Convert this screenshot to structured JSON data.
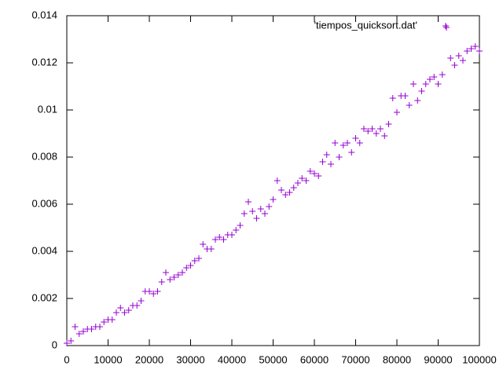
{
  "chart_data": {
    "type": "scatter",
    "xlim": [
      0,
      100000
    ],
    "xticks": [
      0,
      10000,
      20000,
      30000,
      40000,
      50000,
      60000,
      70000,
      80000,
      90000,
      100000
    ],
    "ylim": [
      0,
      0.014
    ],
    "yticks": [
      0,
      0.002,
      0.004,
      0.006,
      0.008,
      0.01,
      0.012,
      0.014
    ],
    "legend": "top-right",
    "series": [
      {
        "name": "'tiempos_quicksort.dat'",
        "color": "#9400d3",
        "x": [
          0,
          1000,
          2000,
          3000,
          4000,
          5000,
          6000,
          7000,
          8000,
          9000,
          10000,
          11000,
          12000,
          13000,
          14000,
          15000,
          16000,
          17000,
          18000,
          19000,
          20000,
          21000,
          22000,
          23000,
          24000,
          25000,
          26000,
          27000,
          28000,
          29000,
          30000,
          31000,
          32000,
          33000,
          34000,
          35000,
          36000,
          37000,
          38000,
          39000,
          40000,
          41000,
          42000,
          43000,
          44000,
          45000,
          46000,
          47000,
          48000,
          49000,
          50000,
          51000,
          52000,
          53000,
          54000,
          55000,
          56000,
          57000,
          58000,
          59000,
          60000,
          61000,
          62000,
          63000,
          64000,
          65000,
          66000,
          67000,
          68000,
          69000,
          70000,
          71000,
          72000,
          73000,
          74000,
          75000,
          76000,
          77000,
          78000,
          79000,
          80000,
          81000,
          82000,
          83000,
          84000,
          85000,
          86000,
          87000,
          88000,
          89000,
          90000,
          91000,
          92000,
          93000,
          94000,
          95000,
          96000,
          97000,
          98000,
          99000,
          100000
        ],
        "values": [
          0.0001,
          0.0002,
          0.0008,
          0.0005,
          0.0006,
          0.0007,
          0.0007,
          0.0008,
          0.0008,
          0.001,
          0.0011,
          0.0011,
          0.0014,
          0.0016,
          0.0014,
          0.0015,
          0.0017,
          0.0017,
          0.0019,
          0.0023,
          0.0023,
          0.0022,
          0.0023,
          0.0027,
          0.0031,
          0.0028,
          0.0029,
          0.003,
          0.0031,
          0.0033,
          0.0034,
          0.0036,
          0.0037,
          0.0043,
          0.0041,
          0.0041,
          0.0045,
          0.0046,
          0.0045,
          0.0047,
          0.0047,
          0.0049,
          0.0051,
          0.0056,
          0.0061,
          0.0057,
          0.0054,
          0.0058,
          0.0056,
          0.0059,
          0.0062,
          0.007,
          0.0066,
          0.0064,
          0.0065,
          0.0067,
          0.0069,
          0.0071,
          0.007,
          0.0074,
          0.0073,
          0.0072,
          0.0078,
          0.0081,
          0.0077,
          0.0086,
          0.008,
          0.0085,
          0.0086,
          0.0082,
          0.0088,
          0.0086,
          0.0092,
          0.0091,
          0.0092,
          0.009,
          0.0092,
          0.0089,
          0.0094,
          0.0105,
          0.0099,
          0.0106,
          0.0106,
          0.0102,
          0.0111,
          0.0104,
          0.0108,
          0.0111,
          0.0113,
          0.0114,
          0.0111,
          0.0115,
          0.0135,
          0.0122,
          0.0119,
          0.0123,
          0.0121,
          0.0125,
          0.0126,
          0.0127,
          0.0125
        ]
      }
    ]
  }
}
